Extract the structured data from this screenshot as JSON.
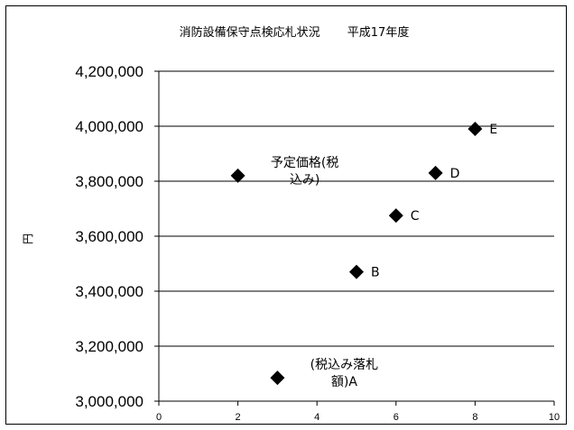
{
  "chart_data": {
    "type": "scatter",
    "title": "消防設備保守点検応札状況　　 平成17年度",
    "xlabel": "",
    "ylabel": "円",
    "xlim": [
      0,
      10
    ],
    "ylim": [
      3000000,
      4200000
    ],
    "x_ticks": [
      "0",
      "2",
      "4",
      "6",
      "8",
      "10"
    ],
    "y_ticks": [
      "3,000,000",
      "3,200,000",
      "3,400,000",
      "3,600,000",
      "3,800,000",
      "4,000,000",
      "4,200,000"
    ],
    "marker_color": "#000000",
    "grid": "horizontal",
    "points": [
      {
        "x": 2,
        "y": 3820000,
        "label_lines": [
          "予定価格(税",
          "込み)"
        ]
      },
      {
        "x": 3,
        "y": 3085000,
        "label_lines": [
          "(税込み落札",
          "額)A"
        ]
      },
      {
        "x": 5,
        "y": 3470000,
        "label_lines": [
          "B"
        ]
      },
      {
        "x": 6,
        "y": 3675000,
        "label_lines": [
          "C"
        ]
      },
      {
        "x": 7,
        "y": 3830000,
        "label_lines": [
          "D"
        ]
      },
      {
        "x": 8,
        "y": 3990000,
        "label_lines": [
          "E"
        ]
      }
    ]
  }
}
